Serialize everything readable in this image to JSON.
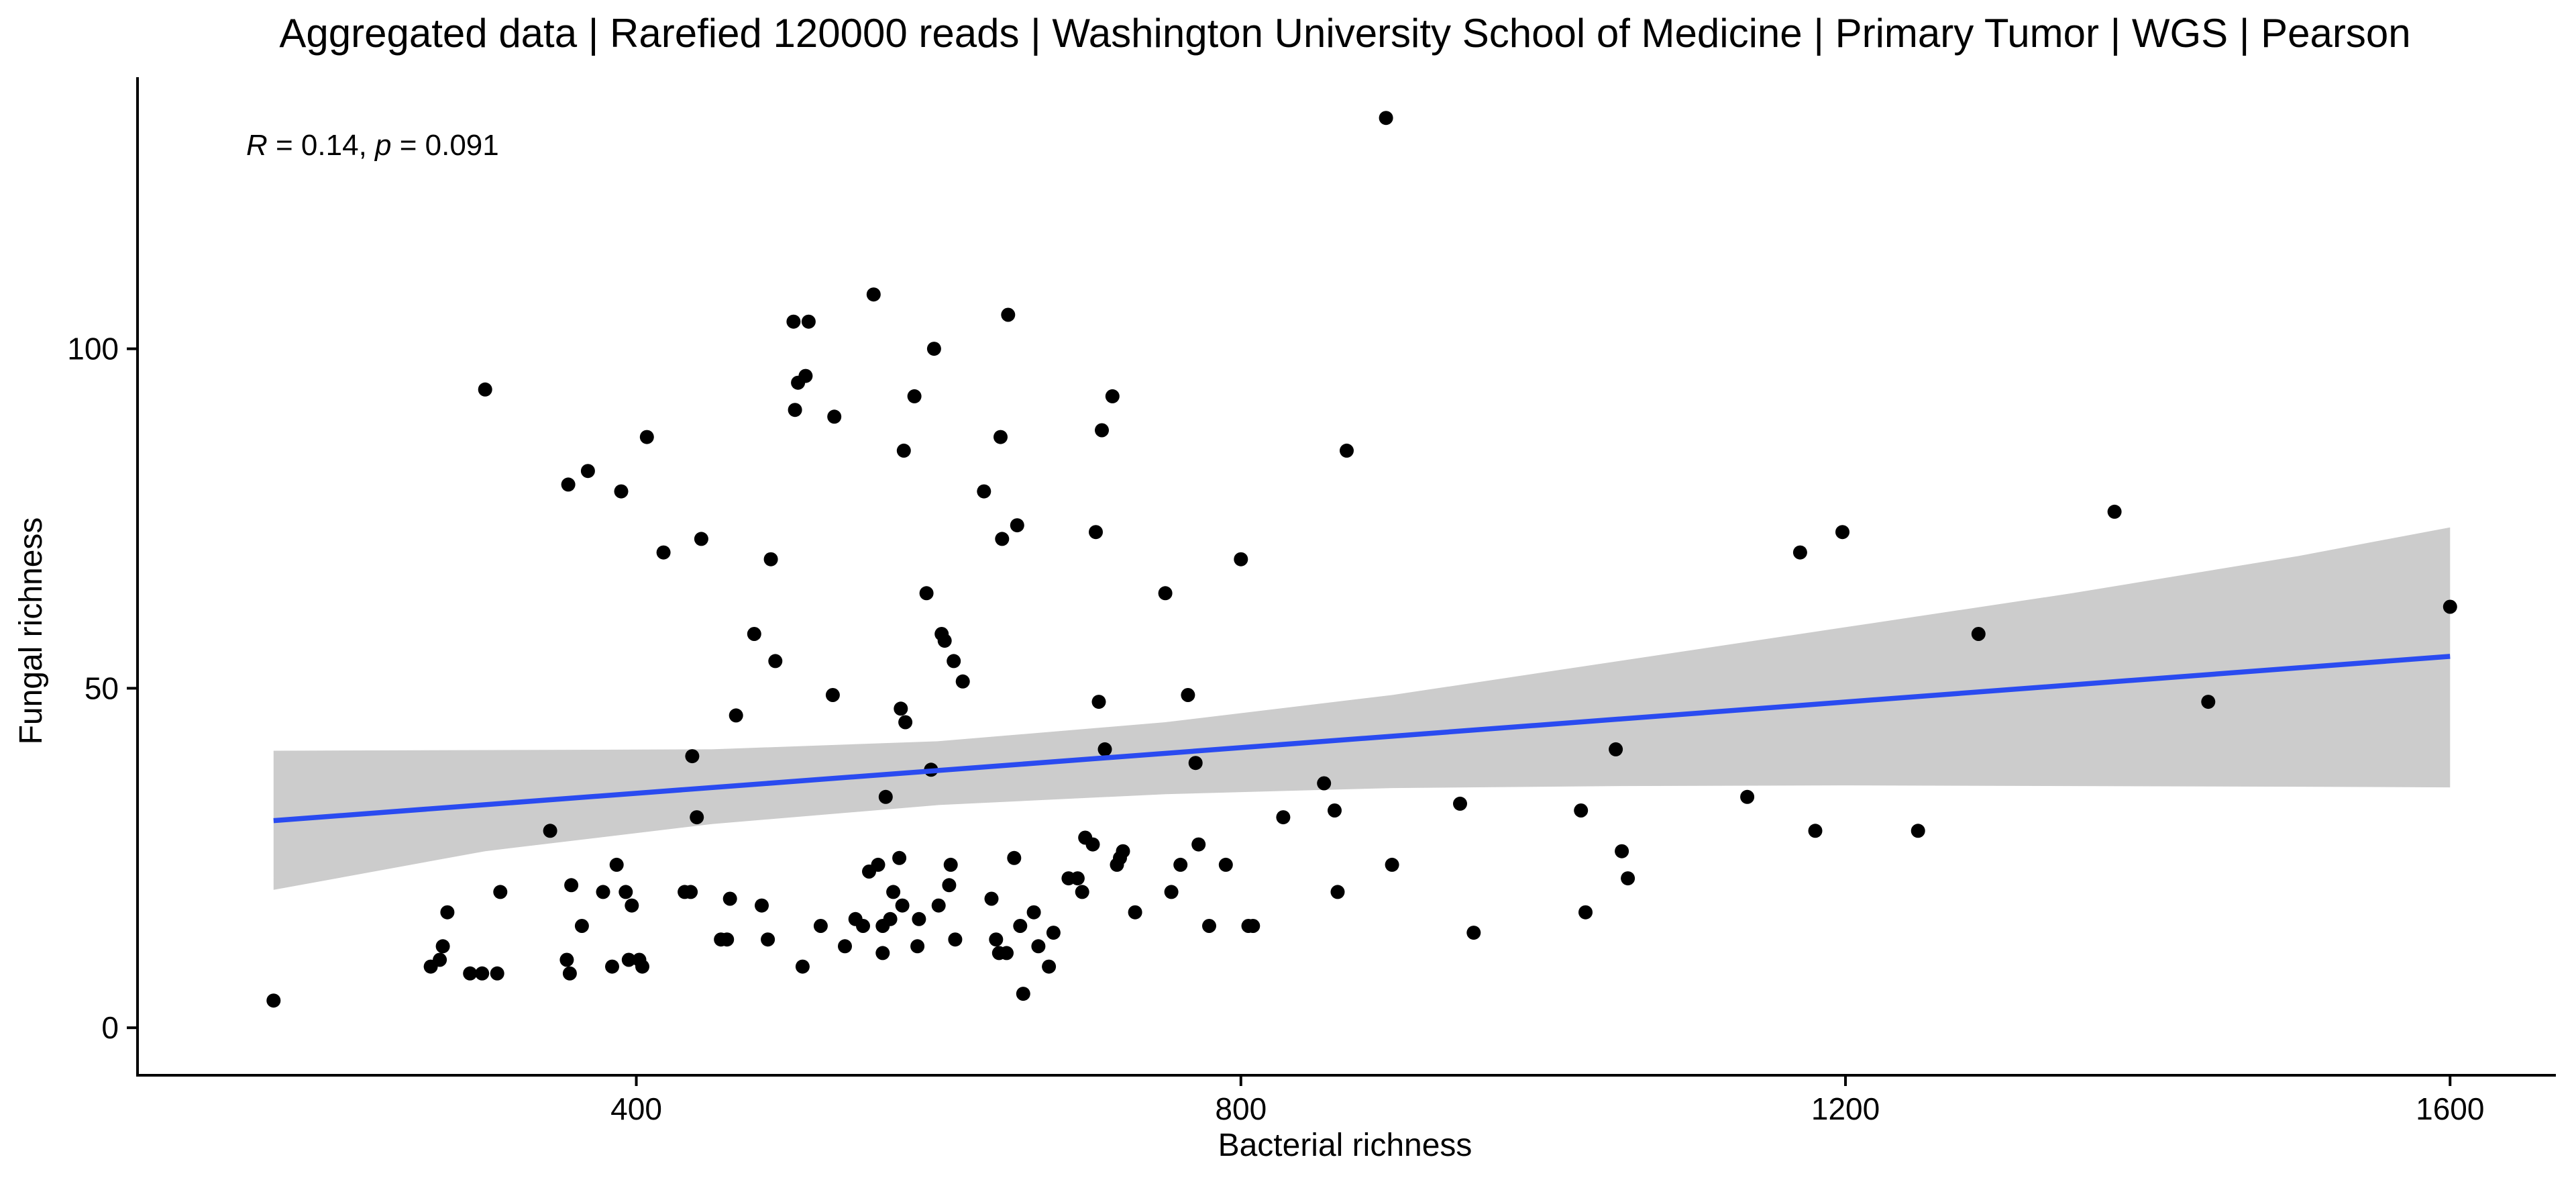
{
  "chart_data": {
    "type": "scatter",
    "title": "Aggregated data | Rarefied 120000 reads | Washington University School of Medicine | Primary Tumor | WGS | Pearson",
    "xlabel": "Bacterial richness",
    "ylabel": "Fungal richness",
    "xlim": [
      70,
      1670
    ],
    "ylim": [
      -7,
      140
    ],
    "xticks": [
      400,
      800,
      1200,
      1600
    ],
    "yticks": [
      0,
      50,
      100
    ],
    "grid": false,
    "annotation": {
      "r_symbol": "R",
      "r_text": " = 0.14, ",
      "p_symbol": "p",
      "p_text": " = 0.091"
    },
    "colors": {
      "points": "#000000",
      "regression_line": "#2A4BF0",
      "confidence_band": "#CCCCCC",
      "axis": "#000000"
    },
    "regression": {
      "x": [
        160,
        1600
      ],
      "y": [
        30.5,
        54.7
      ],
      "ci": [
        {
          "x": 160,
          "lower": 20.3,
          "upper": 40.8
        },
        {
          "x": 300,
          "lower": 26.0,
          "upper": 40.9
        },
        {
          "x": 450,
          "lower": 30.0,
          "upper": 41.0
        },
        {
          "x": 600,
          "lower": 32.8,
          "upper": 42.2
        },
        {
          "x": 750,
          "lower": 34.4,
          "upper": 45.0
        },
        {
          "x": 900,
          "lower": 35.3,
          "upper": 49.0
        },
        {
          "x": 1050,
          "lower": 35.6,
          "upper": 54.0
        },
        {
          "x": 1200,
          "lower": 35.7,
          "upper": 59.0
        },
        {
          "x": 1350,
          "lower": 35.6,
          "upper": 64.0
        },
        {
          "x": 1500,
          "lower": 35.5,
          "upper": 69.5
        },
        {
          "x": 1600,
          "lower": 35.4,
          "upper": 73.7
        }
      ]
    },
    "points": [
      [
        160,
        4
      ],
      [
        264,
        9
      ],
      [
        270,
        10
      ],
      [
        272,
        12
      ],
      [
        275,
        17
      ],
      [
        290,
        8
      ],
      [
        298,
        8
      ],
      [
        300,
        94
      ],
      [
        308,
        8
      ],
      [
        310,
        20
      ],
      [
        343,
        29
      ],
      [
        354,
        10
      ],
      [
        355,
        80
      ],
      [
        356,
        8
      ],
      [
        357,
        21
      ],
      [
        364,
        15
      ],
      [
        368,
        82
      ],
      [
        378,
        20
      ],
      [
        384,
        9
      ],
      [
        387,
        24
      ],
      [
        390,
        79
      ],
      [
        393,
        20
      ],
      [
        395,
        10
      ],
      [
        397,
        18
      ],
      [
        402,
        10
      ],
      [
        404,
        9
      ],
      [
        407,
        87
      ],
      [
        418,
        70
      ],
      [
        432,
        20
      ],
      [
        436,
        20
      ],
      [
        437,
        40
      ],
      [
        440,
        31
      ],
      [
        443,
        72
      ],
      [
        456,
        13
      ],
      [
        460,
        13
      ],
      [
        462,
        19
      ],
      [
        466,
        46
      ],
      [
        478,
        58
      ],
      [
        483,
        18
      ],
      [
        487,
        13
      ],
      [
        489,
        69
      ],
      [
        492,
        54
      ],
      [
        504,
        104
      ],
      [
        505,
        91
      ],
      [
        507,
        95
      ],
      [
        510,
        9
      ],
      [
        512,
        96
      ],
      [
        514,
        104
      ],
      [
        522,
        15
      ],
      [
        530,
        49
      ],
      [
        531,
        90
      ],
      [
        538,
        12
      ],
      [
        545,
        16
      ],
      [
        550,
        15
      ],
      [
        554,
        23
      ],
      [
        557,
        108
      ],
      [
        560,
        24
      ],
      [
        563,
        11
      ],
      [
        563,
        15
      ],
      [
        565,
        34
      ],
      [
        568,
        16
      ],
      [
        570,
        20
      ],
      [
        574,
        25
      ],
      [
        575,
        47
      ],
      [
        576,
        18
      ],
      [
        577,
        85
      ],
      [
        578,
        45
      ],
      [
        584,
        93
      ],
      [
        586,
        12
      ],
      [
        587,
        16
      ],
      [
        592,
        64
      ],
      [
        595,
        38
      ],
      [
        597,
        100
      ],
      [
        600,
        18
      ],
      [
        602,
        58
      ],
      [
        604,
        57
      ],
      [
        607,
        21
      ],
      [
        608,
        24
      ],
      [
        610,
        54
      ],
      [
        611,
        13
      ],
      [
        616,
        51
      ],
      [
        630,
        79
      ],
      [
        635,
        19
      ],
      [
        638,
        13
      ],
      [
        640,
        11
      ],
      [
        641,
        87
      ],
      [
        642,
        72
      ],
      [
        645,
        11
      ],
      [
        646,
        105
      ],
      [
        650,
        25
      ],
      [
        652,
        74
      ],
      [
        654,
        15
      ],
      [
        656,
        5
      ],
      [
        663,
        17
      ],
      [
        666,
        12
      ],
      [
        673,
        9
      ],
      [
        676,
        14
      ],
      [
        686,
        22
      ],
      [
        692,
        22
      ],
      [
        695,
        20
      ],
      [
        697,
        28
      ],
      [
        702,
        27
      ],
      [
        704,
        73
      ],
      [
        706,
        48
      ],
      [
        708,
        88
      ],
      [
        710,
        41
      ],
      [
        715,
        93
      ],
      [
        718,
        24
      ],
      [
        720,
        25
      ],
      [
        722,
        26
      ],
      [
        730,
        17
      ],
      [
        750,
        64
      ],
      [
        754,
        20
      ],
      [
        760,
        24
      ],
      [
        765,
        49
      ],
      [
        770,
        39
      ],
      [
        772,
        27
      ],
      [
        779,
        15
      ],
      [
        790,
        24
      ],
      [
        800,
        69
      ],
      [
        805,
        15
      ],
      [
        808,
        15
      ],
      [
        828,
        31
      ],
      [
        855,
        36
      ],
      [
        862,
        32
      ],
      [
        864,
        20
      ],
      [
        870,
        85
      ],
      [
        896,
        134
      ],
      [
        900,
        24
      ],
      [
        945,
        33
      ],
      [
        954,
        14
      ],
      [
        1025,
        32
      ],
      [
        1028,
        17
      ],
      [
        1048,
        41
      ],
      [
        1052,
        26
      ],
      [
        1056,
        22
      ],
      [
        1135,
        34
      ],
      [
        1170,
        70
      ],
      [
        1180,
        29
      ],
      [
        1198,
        73
      ],
      [
        1248,
        29
      ],
      [
        1288,
        58
      ],
      [
        1378,
        76
      ],
      [
        1440,
        48
      ],
      [
        1600,
        62
      ]
    ]
  }
}
